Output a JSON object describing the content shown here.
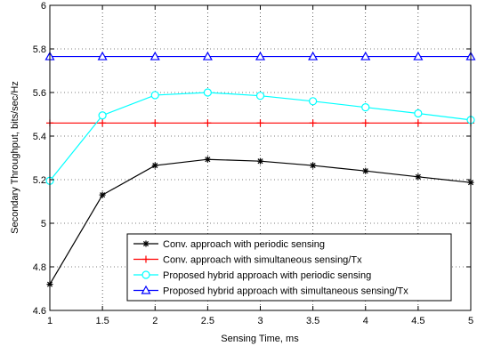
{
  "chart_data": {
    "type": "line",
    "xlabel": "Sensing Time, ms",
    "ylabel": "Secondary Throughput, bits/sec/Hz",
    "xlim": [
      1,
      5
    ],
    "ylim": [
      4.6,
      6
    ],
    "xticks": [
      "1",
      "1.5",
      "2",
      "2.5",
      "3",
      "3.5",
      "4",
      "4.5",
      "5"
    ],
    "yticks": [
      "4.6",
      "4.8",
      "5",
      "5.2",
      "5.4",
      "5.6",
      "5.8",
      "6"
    ],
    "grid": true,
    "legend_position": "bottom-center",
    "x": [
      1,
      1.5,
      2,
      2.5,
      3,
      3.5,
      4,
      4.5,
      5
    ],
    "series": [
      {
        "name": "Conv. approach with periodic sensing",
        "color": "#000000",
        "marker": "asterisk",
        "values": [
          4.72,
          5.13,
          5.265,
          5.293,
          5.285,
          5.265,
          5.24,
          5.213,
          5.187
        ]
      },
      {
        "name": "Conv. approach with simultaneous sensing/Tx",
        "color": "#ff0000",
        "marker": "plus",
        "values": [
          5.46,
          5.46,
          5.46,
          5.46,
          5.46,
          5.46,
          5.46,
          5.46,
          5.46
        ]
      },
      {
        "name": "Proposed hybrid approach with periodic sensing",
        "color": "#00ffff",
        "marker": "circle",
        "values": [
          5.195,
          5.495,
          5.588,
          5.6,
          5.585,
          5.56,
          5.532,
          5.504,
          5.474
        ]
      },
      {
        "name": "Proposed hybrid approach with simultaneous sensing/Tx",
        "color": "#0000ff",
        "marker": "triangle",
        "values": [
          5.765,
          5.765,
          5.765,
          5.765,
          5.765,
          5.765,
          5.765,
          5.765,
          5.765
        ]
      }
    ]
  }
}
